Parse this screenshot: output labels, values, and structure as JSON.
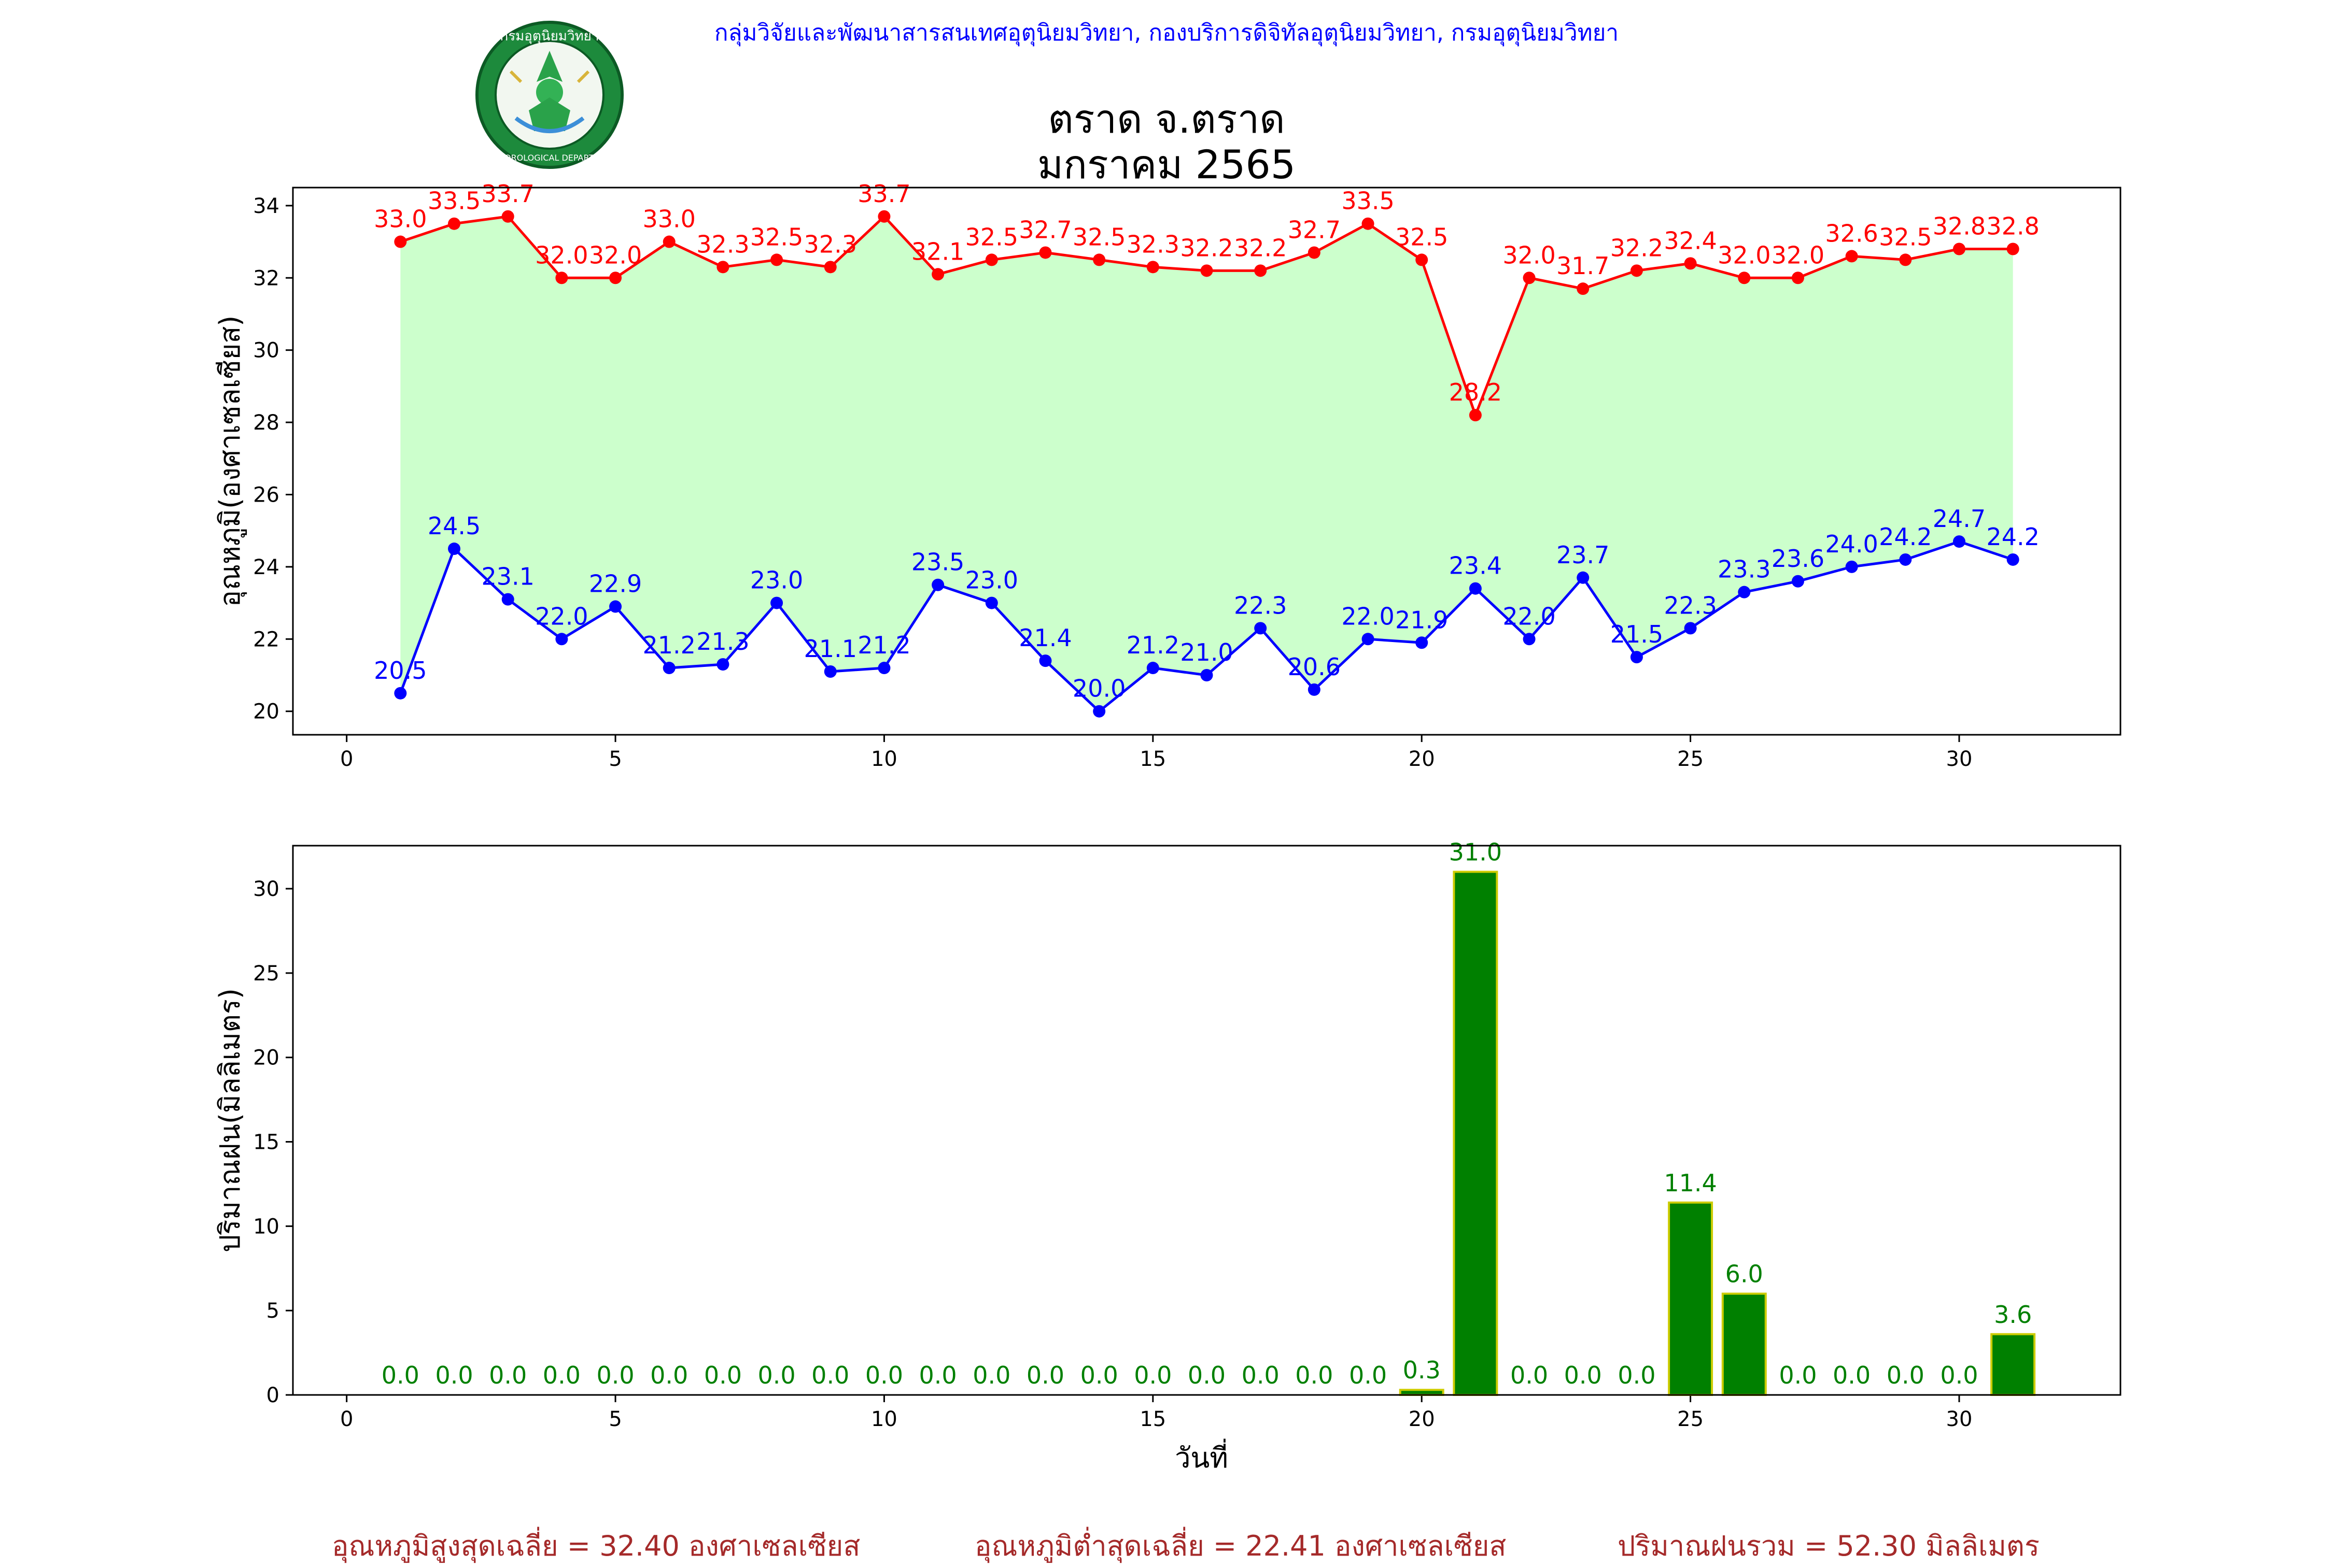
{
  "header": {
    "org_text": "กลุ่มวิจัยและพัฒนาสารสนเทศอุตุนิยมวิทยา, กองบริการดิจิทัลอุตุนิยมวิทยา, กรมอุตุนิยมวิทยา",
    "title_line1": "ตราด จ.ตราด",
    "title_line2": "มกราคม 2565",
    "logo_top_text": "กรมอุตุนิยมวิทยา",
    "logo_bottom_text": "METEOROLOGICAL DEPARTMENT"
  },
  "colors": {
    "max_line": "#ff0000",
    "min_line": "#0000ff",
    "fill": "#ccffcc",
    "rain_bar": "#008000",
    "rain_edge": "#cccc00",
    "rain_label": "#008000",
    "footer": "#a52a2a",
    "header": "#0000ff"
  },
  "chart_data": [
    {
      "type": "line",
      "ylabel": "อุณหภูมิ(องศาเซลเซียส)",
      "xlabel": "",
      "xlim": [
        -1,
        33
      ],
      "ylim": [
        19.35,
        34.5
      ],
      "xticks": [
        0,
        5,
        10,
        15,
        20,
        25,
        30
      ],
      "yticks": [
        20,
        22,
        24,
        26,
        28,
        30,
        32,
        34
      ],
      "x": [
        1,
        2,
        3,
        4,
        5,
        6,
        7,
        8,
        9,
        10,
        11,
        12,
        13,
        14,
        15,
        16,
        17,
        18,
        19,
        20,
        21,
        22,
        23,
        24,
        25,
        26,
        27,
        28,
        29,
        30,
        31
      ],
      "fill_between": true,
      "series": [
        {
          "key": "max",
          "values": [
            33.0,
            33.5,
            33.7,
            32.0,
            32.0,
            33.0,
            32.3,
            32.5,
            32.3,
            33.7,
            32.1,
            32.5,
            32.7,
            32.5,
            32.3,
            32.2,
            32.2,
            32.7,
            33.5,
            32.5,
            28.2,
            32.0,
            31.7,
            32.2,
            32.4,
            32.0,
            32.0,
            32.6,
            32.5,
            32.8,
            32.8
          ],
          "labels": [
            "33.0",
            "33.5",
            "33.7",
            "32.0",
            "32.0",
            "33.0",
            "32.3",
            "32.5",
            "32.3",
            "33.7",
            "32.1",
            "32.5",
            "32.7",
            "32.5",
            "32.3",
            "32.2",
            "32.2",
            "32.7",
            "33.5",
            "32.5",
            "28.2",
            "32.0",
            "31.7",
            "32.2",
            "32.4",
            "32.0",
            "32.0",
            "32.6",
            "32.5",
            "32.8",
            "32.8"
          ]
        },
        {
          "key": "min",
          "values": [
            20.5,
            24.5,
            23.1,
            22.0,
            22.9,
            21.2,
            21.3,
            23.0,
            21.1,
            21.2,
            23.5,
            23.0,
            21.4,
            20.0,
            21.2,
            21.0,
            22.3,
            20.6,
            22.0,
            21.9,
            23.4,
            22.0,
            23.7,
            21.5,
            22.3,
            23.3,
            23.6,
            24.0,
            24.2,
            24.7,
            24.2
          ],
          "labels": [
            "20.5",
            "24.5",
            "23.1",
            "22.0",
            "22.9",
            "21.2",
            "21.3",
            "23.0",
            "21.1",
            "21.2",
            "23.5",
            "23.0",
            "21.4",
            "20.0",
            "21.2",
            "21.0",
            "22.3",
            "20.6",
            "22.0",
            "21.9",
            "23.4",
            "22.0",
            "23.7",
            "21.5",
            "22.3",
            "23.3",
            "23.6",
            "24.0",
            "24.2",
            "24.7",
            "24.2"
          ]
        }
      ]
    },
    {
      "type": "bar",
      "ylabel": "ปริมาณฝน(มิลลิเมตร)",
      "xlabel": "วันที่",
      "xlim": [
        -1,
        33
      ],
      "ylim": [
        0,
        32.55
      ],
      "xticks": [
        0,
        5,
        10,
        15,
        20,
        25,
        30
      ],
      "yticks": [
        0,
        5,
        10,
        15,
        20,
        25,
        30
      ],
      "x": [
        1,
        2,
        3,
        4,
        5,
        6,
        7,
        8,
        9,
        10,
        11,
        12,
        13,
        14,
        15,
        16,
        17,
        18,
        19,
        20,
        21,
        22,
        23,
        24,
        25,
        26,
        27,
        28,
        29,
        30,
        31
      ],
      "values": [
        0.0,
        0.0,
        0.0,
        0.0,
        0.0,
        0.0,
        0.0,
        0.0,
        0.0,
        0.0,
        0.0,
        0.0,
        0.0,
        0.0,
        0.0,
        0.0,
        0.0,
        0.0,
        0.0,
        0.3,
        31.0,
        0.0,
        0.0,
        0.0,
        11.4,
        6.0,
        0.0,
        0.0,
        0.0,
        0.0,
        3.6
      ],
      "labels": [
        "0.0",
        "0.0",
        "0.0",
        "0.0",
        "0.0",
        "0.0",
        "0.0",
        "0.0",
        "0.0",
        "0.0",
        "0.0",
        "0.0",
        "0.0",
        "0.0",
        "0.0",
        "0.0",
        "0.0",
        "0.0",
        "0.0",
        "0.3",
        "31.0",
        "0.0",
        "0.0",
        "0.0",
        "11.4",
        "6.0",
        "0.0",
        "0.0",
        "0.0",
        "0.0",
        "3.6"
      ]
    }
  ],
  "footer": {
    "avg_max": "อุณหภูมิสูงสุดเฉลี่ย = 32.40 องศาเซลเซียส",
    "avg_min": "อุณหภูมิต่ำสุดเฉลี่ย = 22.41 องศาเซลเซียส",
    "total_rain": "ปริมาณฝนรวม = 52.30 มิลลิเมตร"
  }
}
